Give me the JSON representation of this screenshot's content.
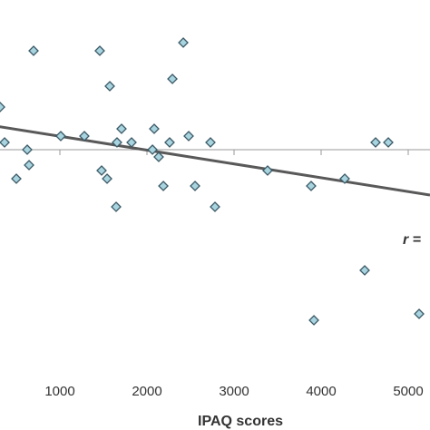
{
  "chart_data": {
    "type": "scatter",
    "x_label": "IPAQ scores",
    "annotation": "r =",
    "x": [
      313,
      365,
      698,
      500,
      625,
      646,
      1010,
      1281,
      1458,
      1573,
      1479,
      1542,
      1656,
      1708,
      1646,
      1823,
      2063,
      2083,
      2135,
      2188,
      2260,
      2292,
      2417,
      2479,
      2552,
      2729,
      2781,
      3385,
      3885,
      4271,
      4625,
      4771,
      4500,
      3917,
      5125
    ],
    "values": [
      4.7,
      0.8,
      10.9,
      -3.2,
      0,
      -1.7,
      1.5,
      1.5,
      10.9,
      7,
      -2.3,
      -3.2,
      0.8,
      2.3,
      -6.3,
      0.8,
      0,
      2.3,
      -0.8,
      -4,
      0.8,
      7.8,
      11.8,
      1.5,
      -4,
      0.8,
      -6.3,
      -2.3,
      -4,
      -3.2,
      0.8,
      0.8,
      -13.3,
      -18.8,
      -18.1
    ],
    "color": "#a8d4e0",
    "trendline": {
      "x": [
        0,
        5250
      ],
      "y": [
        3,
        -5
      ],
      "color": "#595959"
    },
    "xlim": [
      312.5,
      5250
    ],
    "ylim": [
      -30.9,
      16.5
    ],
    "xticks": [
      1000,
      2000,
      3000,
      4000,
      5000
    ]
  }
}
